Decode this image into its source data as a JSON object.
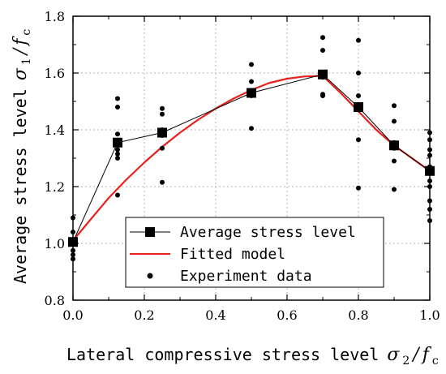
{
  "chart_data": {
    "type": "line",
    "xlabel": "Lateral compressive stress level",
    "xlabel_symbol": {
      "main": "σ",
      "sub": "2",
      "tail": "/",
      "denominator": "f",
      "denominator_sub": "c"
    },
    "ylabel": "Average stress level",
    "ylabel_symbol": {
      "main": "σ",
      "sub": "1",
      "tail": "/",
      "denominator": "f",
      "denominator_sub": "c"
    },
    "xlim": [
      0.0,
      1.0
    ],
    "ylim": [
      0.8,
      1.8
    ],
    "x_ticks": [
      "0.0",
      "0.2",
      "0.4",
      "0.6",
      "0.8",
      "1.0"
    ],
    "y_ticks": [
      "0.8",
      "1.0",
      "1.2",
      "1.4",
      "1.6",
      "1.8"
    ],
    "grid": true,
    "legend_position": "bottom-center",
    "series": [
      {
        "name": "Average stress level",
        "kind": "line-marker",
        "color": "#000000",
        "x": [
          0.0,
          0.125,
          0.25,
          0.5,
          0.7,
          0.8,
          0.9,
          1.0
        ],
        "y": [
          1.005,
          1.355,
          1.39,
          1.53,
          1.595,
          1.48,
          1.345,
          1.255
        ]
      },
      {
        "name": "Fitted model",
        "kind": "curve",
        "color": "#e8211f",
        "x": [
          0.0,
          0.05,
          0.1,
          0.15,
          0.2,
          0.25,
          0.3,
          0.35,
          0.4,
          0.45,
          0.5,
          0.55,
          0.6,
          0.65,
          0.7,
          0.75,
          0.8,
          0.85,
          0.9,
          0.95,
          1.0
        ],
        "y": [
          1.01,
          1.085,
          1.16,
          1.225,
          1.285,
          1.34,
          1.39,
          1.435,
          1.475,
          1.51,
          1.54,
          1.565,
          1.58,
          1.588,
          1.59,
          1.53,
          1.465,
          1.4,
          1.345,
          1.3,
          1.255
        ]
      },
      {
        "name": "Experiment data",
        "kind": "scatter",
        "color": "#000000",
        "x": [
          0.0,
          0.0,
          0.0,
          0.0,
          0.0,
          0.125,
          0.125,
          0.125,
          0.125,
          0.125,
          0.125,
          0.125,
          0.125,
          0.25,
          0.25,
          0.25,
          0.25,
          0.25,
          0.25,
          0.5,
          0.5,
          0.5,
          0.5,
          0.5,
          0.7,
          0.7,
          0.7,
          0.7,
          0.7,
          0.7,
          0.8,
          0.8,
          0.8,
          0.8,
          0.8,
          0.8,
          0.9,
          0.9,
          0.9,
          0.9,
          0.9,
          0.9,
          1.0,
          1.0,
          1.0,
          1.0,
          1.0,
          1.0,
          1.0,
          1.0,
          1.0,
          1.0,
          1.0
        ],
        "y": [
          1.09,
          1.04,
          0.975,
          0.96,
          0.945,
          1.51,
          1.48,
          1.385,
          1.355,
          1.33,
          1.315,
          1.3,
          1.17,
          1.475,
          1.455,
          1.4,
          1.38,
          1.335,
          1.215,
          1.63,
          1.57,
          1.535,
          1.52,
          1.405,
          1.725,
          1.68,
          1.6,
          1.585,
          1.525,
          1.52,
          1.715,
          1.6,
          1.52,
          1.47,
          1.365,
          1.195,
          1.485,
          1.43,
          1.355,
          1.335,
          1.29,
          1.19,
          1.39,
          1.365,
          1.33,
          1.31,
          1.27,
          1.25,
          1.22,
          1.2,
          1.15,
          1.12,
          1.08
        ]
      }
    ]
  }
}
